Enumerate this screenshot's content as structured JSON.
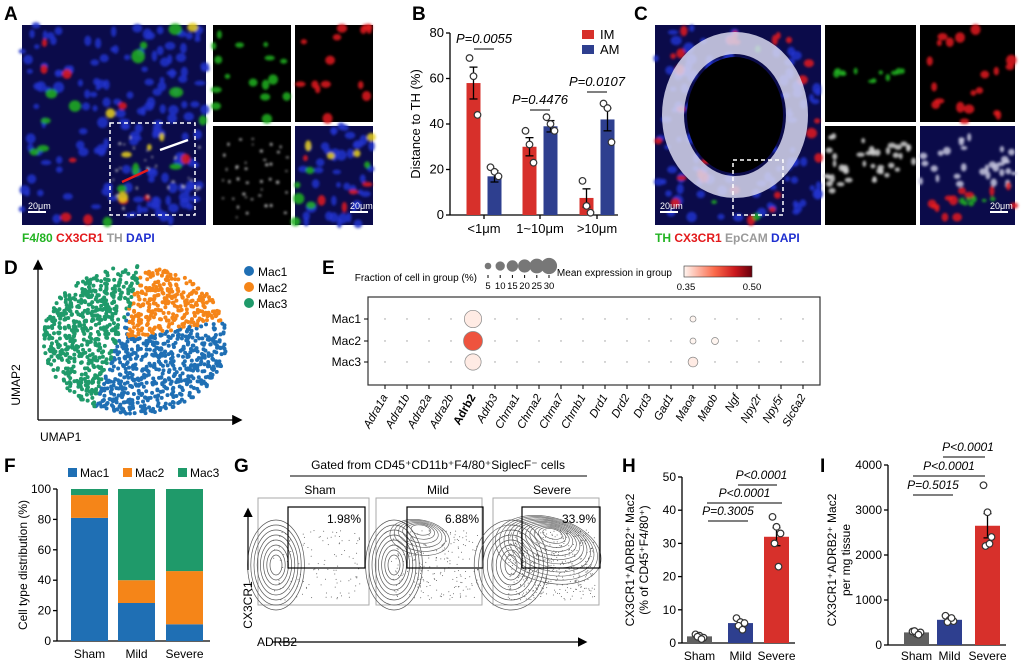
{
  "panel_letters": {
    "A": "A",
    "B": "B",
    "C": "C",
    "D": "D",
    "E": "E",
    "F": "F",
    "G": "G",
    "H": "H",
    "I": "I"
  },
  "panel_a": {
    "caption": [
      {
        "text": "F4/80",
        "color": "#22b322"
      },
      {
        "text": "CX3CR1",
        "color": "#e31a1c"
      },
      {
        "text": "TH",
        "color": "#9a9a9a"
      },
      {
        "text": "DAPI",
        "color": "#1f2fd0"
      }
    ],
    "scale_bar_main": "20μm",
    "scale_bar_inset": "20μm"
  },
  "panel_c": {
    "caption": [
      {
        "text": "TH",
        "color": "#22b322"
      },
      {
        "text": "CX3CR1",
        "color": "#e31a1c"
      },
      {
        "text": "EpCAM",
        "color": "#9a9a9a"
      },
      {
        "text": "DAPI",
        "color": "#1f2fd0"
      }
    ],
    "scale_bar_main": "20μm",
    "scale_bar_inset": "20μm"
  },
  "panel_d": {
    "xlabel": "UMAP1",
    "ylabel": "UMAP2",
    "legend": [
      {
        "name": "Mac1",
        "color": "#1f6fb4"
      },
      {
        "name": "Mac2",
        "color": "#f58518"
      },
      {
        "name": "Mac3",
        "color": "#1f9a6a"
      }
    ]
  },
  "panel_g": {
    "header": "Gated from CD45⁺CD11b⁺F4/80⁺SiglecF⁻ cells",
    "xlabel": "ADRB2",
    "ylabel": "CX3CR1",
    "gates": [
      {
        "group": "Sham",
        "percent": "1.98%"
      },
      {
        "group": "Mild",
        "percent": "6.88%"
      },
      {
        "group": "Severe",
        "percent": "33.9%"
      }
    ]
  },
  "chart_data": [
    {
      "id": "B",
      "type": "bar",
      "title": "",
      "ylabel": "Distance to TH (%)",
      "xlabel": "",
      "ylim": [
        0,
        80
      ],
      "yticks": [
        0,
        20,
        40,
        60,
        80
      ],
      "categories": [
        "<1μm",
        "1~10μm",
        ">10μm"
      ],
      "series": [
        {
          "name": "IM",
          "color": "#d7302b",
          "values": [
            58,
            30,
            7.5
          ],
          "sem": [
            7,
            4,
            4
          ],
          "points": [
            [
              69,
              61,
              44
            ],
            [
              37,
              31,
              23
            ],
            [
              15,
              4,
              1
            ]
          ]
        },
        {
          "name": "AM",
          "color": "#2e3f8f",
          "values": [
            17,
            39,
            42
          ],
          "sem": [
            2.5,
            2.5,
            5
          ],
          "points": [
            [
              21,
              19,
              17
            ],
            [
              43,
              40,
              37
            ],
            [
              49,
              47,
              32
            ]
          ]
        }
      ],
      "pvalues": [
        "P=0.0055",
        "P=0.4476",
        "P=0.0107"
      ],
      "legend": "top-right"
    },
    {
      "id": "E",
      "type": "dotplot",
      "rows": [
        "Mac1",
        "Mac2",
        "Mac3"
      ],
      "columns": [
        "Adra1a",
        "Adra1b",
        "Adra2a",
        "Adra2b",
        "Adrb2",
        "Adrb3",
        "Chrna1",
        "Chrna2",
        "Chrna7",
        "Chrnb1",
        "Drd1",
        "Drd2",
        "Drd3",
        "Gad1",
        "Maoa",
        "Maob",
        "Ngf",
        "Npy2r",
        "Npy5r",
        "Slc6a2"
      ],
      "highlight_column": "Adrb2",
      "fraction": [
        [
          0.5,
          0.5,
          0.5,
          0.5,
          25,
          0.5,
          0.5,
          1,
          0.5,
          1,
          0.5,
          0.5,
          0.5,
          0.5,
          3,
          1,
          1,
          0.5,
          0.5,
          0.5
        ],
        [
          1,
          0.5,
          0.5,
          0.5,
          30,
          0.5,
          0.5,
          0.5,
          0.5,
          0.5,
          1,
          0.5,
          0.5,
          0.5,
          3,
          4,
          0.5,
          0.5,
          0.5,
          1
        ],
        [
          0.5,
          0.5,
          1,
          0.5,
          22,
          0.5,
          0.5,
          0.5,
          0.5,
          0.5,
          0.5,
          0.5,
          0.5,
          0.5,
          8,
          0.5,
          0.5,
          0.5,
          0.5,
          0.5
        ]
      ],
      "expression": [
        [
          0.35,
          0.35,
          0.35,
          0.35,
          0.355,
          0.35,
          0.35,
          0.35,
          0.35,
          0.35,
          0.35,
          0.35,
          0.35,
          0.35,
          0.35,
          0.35,
          0.35,
          0.35,
          0.35,
          0.35
        ],
        [
          0.35,
          0.35,
          0.35,
          0.35,
          0.43,
          0.35,
          0.35,
          0.35,
          0.35,
          0.35,
          0.35,
          0.35,
          0.35,
          0.35,
          0.35,
          0.35,
          0.35,
          0.35,
          0.35,
          0.35
        ],
        [
          0.35,
          0.35,
          0.35,
          0.35,
          0.355,
          0.35,
          0.35,
          0.35,
          0.35,
          0.35,
          0.35,
          0.35,
          0.35,
          0.35,
          0.355,
          0.35,
          0.35,
          0.35,
          0.35,
          0.35
        ]
      ],
      "size_legend": {
        "title": "Fraction of cell in group (%)",
        "values": [
          5,
          10,
          15,
          20,
          25,
          30
        ]
      },
      "color_legend": {
        "title": "Mean expression in group",
        "min": 0.35,
        "max": 0.5,
        "min_label": "0.35",
        "max_label": "0.50",
        "colors": [
          "#fff5f0",
          "#fb6a4a",
          "#cb181d",
          "#67000d"
        ]
      }
    },
    {
      "id": "F",
      "type": "stacked_bar",
      "ylabel": "Cell type distribution (%)",
      "ylim": [
        0,
        100
      ],
      "yticks": [
        0,
        20,
        40,
        60,
        80,
        100
      ],
      "categories": [
        "Sham",
        "Mild",
        "Severe"
      ],
      "series": [
        {
          "name": "Mac1",
          "color": "#1f6fb4",
          "values": [
            81,
            25,
            11
          ]
        },
        {
          "name": "Mac2",
          "color": "#f58518",
          "values": [
            15,
            15,
            35
          ]
        },
        {
          "name": "Mac3",
          "color": "#1f9a6a",
          "values": [
            4,
            60,
            54
          ]
        }
      ],
      "legend": "top"
    },
    {
      "id": "H",
      "type": "bar",
      "ylabel": [
        "CX3CR1⁺ADRB2⁺ Mac2",
        "(% of CD45⁺F4/80⁺)"
      ],
      "ylim": [
        0,
        50
      ],
      "yticks": [
        0,
        10,
        20,
        30,
        40,
        50
      ],
      "categories": [
        "Sham",
        "Mild",
        "Severe"
      ],
      "colors": [
        "#606060",
        "#2e3f8f",
        "#d7302b"
      ],
      "values": [
        2,
        6,
        32
      ],
      "sem": [
        0.3,
        0.9,
        2.7
      ],
      "points": [
        [
          2.6,
          2.2,
          1.6,
          1.9,
          1.2
        ],
        [
          7.5,
          6.3,
          6,
          5.2,
          4
        ],
        [
          38,
          35,
          33,
          30,
          23
        ]
      ],
      "pvalues": [
        {
          "label": "P<0.0001",
          "pair": [
            "Mild",
            "Severe"
          ]
        },
        {
          "label": "P<0.0001",
          "pair": [
            "Sham",
            "Severe"
          ]
        },
        {
          "label": "P=0.3005",
          "pair": [
            "Sham",
            "Mild"
          ]
        }
      ]
    },
    {
      "id": "I",
      "type": "bar",
      "ylabel": [
        "CX3CR1⁺ADRB2⁺ Mac2",
        "per mg tissue"
      ],
      "ylim": [
        0,
        4000
      ],
      "yticks": [
        0,
        1000,
        2000,
        3000,
        4000
      ],
      "categories": [
        "Sham",
        "Mild",
        "Severe"
      ],
      "colors": [
        "#606060",
        "#2e3f8f",
        "#d7302b"
      ],
      "values": [
        280,
        560,
        2650
      ],
      "sem": [
        20,
        30,
        270
      ],
      "points": [
        [
          300,
          250,
          280,
          310,
          230
        ],
        [
          650,
          560,
          530,
          510,
          600
        ],
        [
          3550,
          2950,
          2400,
          2200,
          2250
        ]
      ],
      "pvalues": [
        {
          "label": "P<0.0001",
          "pair": [
            "Mild",
            "Severe"
          ]
        },
        {
          "label": "P<0.0001",
          "pair": [
            "Sham",
            "Severe"
          ]
        },
        {
          "label": "P=0.5015",
          "pair": [
            "Sham",
            "Mild"
          ]
        }
      ]
    }
  ]
}
